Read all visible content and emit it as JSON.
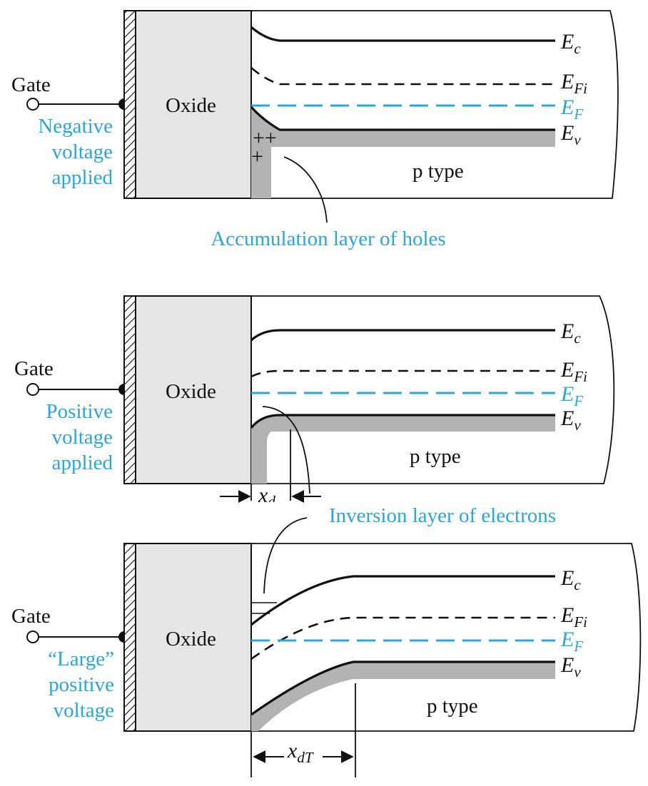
{
  "colors": {
    "accent": "#29a6dd",
    "oxide_fill": "#e6e6e6",
    "layer_fill": "#b3b3b3",
    "ink": "#111111"
  },
  "panels": [
    {
      "gate_label": "Gate",
      "oxide_label": "Oxide",
      "bias_lines": [
        "Negative",
        "voltage",
        "applied"
      ],
      "semiconductor_label": "p type",
      "bands": {
        "ec": "E",
        "ec_sub": "c",
        "efi": "E",
        "efi_sub": "Fi",
        "ef": "E",
        "ef_sub": "F",
        "ev": "E",
        "ev_sub": "v"
      },
      "charge_marks": "++",
      "charge_mark_lower": "+",
      "callout": "Accumulation layer of holes"
    },
    {
      "gate_label": "Gate",
      "oxide_label": "Oxide",
      "bias_lines": [
        "Positive",
        "voltage",
        "applied"
      ],
      "semiconductor_label": "p type",
      "bands": {
        "ec": "E",
        "ec_sub": "c",
        "efi": "E",
        "efi_sub": "Fi",
        "ef": "E",
        "ef_sub": "F",
        "ev": "E",
        "ev_sub": "v"
      },
      "width_symbol": "x",
      "width_sub": "d"
    },
    {
      "gate_label": "Gate",
      "oxide_label": "Oxide",
      "bias_lines": [
        "“Large”",
        "positive",
        "voltage"
      ],
      "semiconductor_label": "p type",
      "bands": {
        "ec": "E",
        "ec_sub": "c",
        "efi": "E",
        "efi_sub": "Fi",
        "ef": "E",
        "ef_sub": "F",
        "ev": "E",
        "ev_sub": "v"
      },
      "callout": "Inversion layer of electrons",
      "width_symbol": "x",
      "width_sub": "dT"
    }
  ]
}
